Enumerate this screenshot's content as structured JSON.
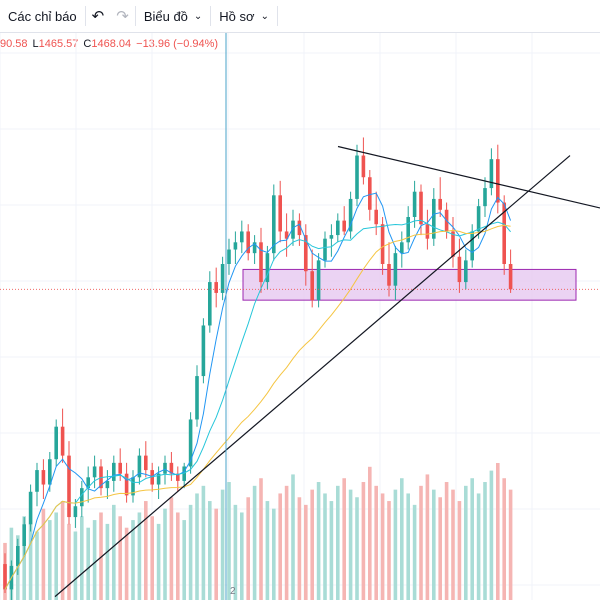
{
  "toolbar": {
    "indicators_label": "Các chỉ báo",
    "undo_icon": "undo-icon",
    "redo_icon": "redo-icon",
    "chart_label": "Biểu đồ",
    "profile_label": "Hồ sơ"
  },
  "legend": {
    "high_value": "90.58",
    "low_label": "L",
    "low_value": "1465.57",
    "close_label": "C",
    "close_value": "1468.04",
    "change": "−13.96 (−0.94%)"
  },
  "time_axis": {
    "visible_label": "2"
  },
  "colors": {
    "up": "#26a69a",
    "down": "#ef5350",
    "ma_short": "#2196f3",
    "ma_mid": "#26c6da",
    "ma_long": "#f5c542",
    "crosshair": "#4aa3c8",
    "zone_fill": "#e6c8f0",
    "zone_border": "#9c27b0",
    "trendline": "#131722"
  },
  "chart_data": {
    "type": "candlestick",
    "price_range": [
      1300,
      1560
    ],
    "ohlc": [
      [
        1316,
        1322,
        1300,
        1302
      ],
      [
        1302,
        1318,
        1296,
        1315
      ],
      [
        1315,
        1330,
        1310,
        1326
      ],
      [
        1326,
        1342,
        1320,
        1338
      ],
      [
        1338,
        1360,
        1334,
        1356
      ],
      [
        1356,
        1372,
        1348,
        1368
      ],
      [
        1368,
        1374,
        1352,
        1360
      ],
      [
        1360,
        1378,
        1356,
        1374
      ],
      [
        1374,
        1396,
        1370,
        1392
      ],
      [
        1392,
        1402,
        1372,
        1376
      ],
      [
        1376,
        1384,
        1338,
        1342
      ],
      [
        1342,
        1352,
        1336,
        1348
      ],
      [
        1348,
        1362,
        1342,
        1358
      ],
      [
        1358,
        1370,
        1350,
        1364
      ],
      [
        1364,
        1376,
        1358,
        1370
      ],
      [
        1370,
        1374,
        1354,
        1358
      ],
      [
        1358,
        1368,
        1352,
        1362
      ],
      [
        1362,
        1376,
        1356,
        1372
      ],
      [
        1372,
        1380,
        1362,
        1366
      ],
      [
        1366,
        1372,
        1350,
        1354
      ],
      [
        1354,
        1368,
        1350,
        1364
      ],
      [
        1364,
        1380,
        1360,
        1376
      ],
      [
        1376,
        1384,
        1364,
        1368
      ],
      [
        1368,
        1372,
        1356,
        1360
      ],
      [
        1360,
        1370,
        1352,
        1366
      ],
      [
        1366,
        1376,
        1360,
        1372
      ],
      [
        1372,
        1378,
        1362,
        1366
      ],
      [
        1366,
        1370,
        1356,
        1362
      ],
      [
        1362,
        1372,
        1358,
        1370
      ],
      [
        1370,
        1400,
        1366,
        1396
      ],
      [
        1396,
        1426,
        1392,
        1420
      ],
      [
        1420,
        1452,
        1416,
        1448
      ],
      [
        1448,
        1478,
        1444,
        1472
      ],
      [
        1472,
        1480,
        1458,
        1466
      ],
      [
        1466,
        1486,
        1462,
        1482
      ],
      [
        1482,
        1496,
        1476,
        1490
      ],
      [
        1490,
        1500,
        1482,
        1494
      ],
      [
        1494,
        1506,
        1488,
        1500
      ],
      [
        1500,
        1504,
        1484,
        1488
      ],
      [
        1488,
        1498,
        1482,
        1494
      ],
      [
        1494,
        1502,
        1466,
        1472
      ],
      [
        1472,
        1492,
        1468,
        1488
      ],
      [
        1488,
        1526,
        1484,
        1520
      ],
      [
        1520,
        1528,
        1494,
        1500
      ],
      [
        1500,
        1510,
        1486,
        1496
      ],
      [
        1496,
        1512,
        1492,
        1506
      ],
      [
        1506,
        1510,
        1492,
        1498
      ],
      [
        1498,
        1504,
        1470,
        1478
      ],
      [
        1478,
        1490,
        1458,
        1462
      ],
      [
        1462,
        1488,
        1458,
        1484
      ],
      [
        1484,
        1500,
        1480,
        1496
      ],
      [
        1496,
        1504,
        1486,
        1498
      ],
      [
        1498,
        1510,
        1494,
        1506
      ],
      [
        1506,
        1514,
        1498,
        1500
      ],
      [
        1500,
        1522,
        1496,
        1518
      ],
      [
        1518,
        1548,
        1514,
        1542
      ],
      [
        1542,
        1552,
        1526,
        1530
      ],
      [
        1530,
        1534,
        1506,
        1512
      ],
      [
        1512,
        1522,
        1498,
        1504
      ],
      [
        1504,
        1508,
        1476,
        1482
      ],
      [
        1482,
        1494,
        1464,
        1470
      ],
      [
        1470,
        1492,
        1462,
        1488
      ],
      [
        1488,
        1500,
        1480,
        1494
      ],
      [
        1494,
        1514,
        1490,
        1508
      ],
      [
        1508,
        1528,
        1502,
        1522
      ],
      [
        1522,
        1526,
        1498,
        1504
      ],
      [
        1504,
        1512,
        1490,
        1496
      ],
      [
        1496,
        1524,
        1492,
        1518
      ],
      [
        1518,
        1530,
        1508,
        1512
      ],
      [
        1512,
        1516,
        1496,
        1500
      ],
      [
        1500,
        1508,
        1480,
        1486
      ],
      [
        1486,
        1496,
        1466,
        1472
      ],
      [
        1472,
        1490,
        1468,
        1484
      ],
      [
        1484,
        1504,
        1480,
        1500
      ],
      [
        1500,
        1518,
        1496,
        1514
      ],
      [
        1514,
        1530,
        1508,
        1524
      ],
      [
        1524,
        1546,
        1520,
        1540
      ],
      [
        1540,
        1548,
        1510,
        1516
      ],
      [
        1516,
        1520,
        1476,
        1482
      ],
      [
        1482,
        1490,
        1466,
        1468
      ]
    ],
    "volumes": [
      30,
      38,
      34,
      44,
      40,
      36,
      48,
      42,
      46,
      52,
      40,
      36,
      44,
      38,
      42,
      46,
      40,
      50,
      44,
      38,
      42,
      46,
      52,
      44,
      40,
      48,
      54,
      46,
      42,
      50,
      56,
      60,
      52,
      48,
      58,
      62,
      50,
      46,
      54,
      60,
      64,
      52,
      48,
      56,
      60,
      66,
      54,
      50,
      58,
      62,
      56,
      52,
      60,
      64,
      58,
      54,
      62,
      70,
      60,
      56,
      52,
      58,
      64,
      56,
      50,
      60,
      66,
      58,
      54,
      62,
      58,
      52,
      60,
      64,
      56,
      62,
      68,
      72,
      64,
      58
    ]
  }
}
